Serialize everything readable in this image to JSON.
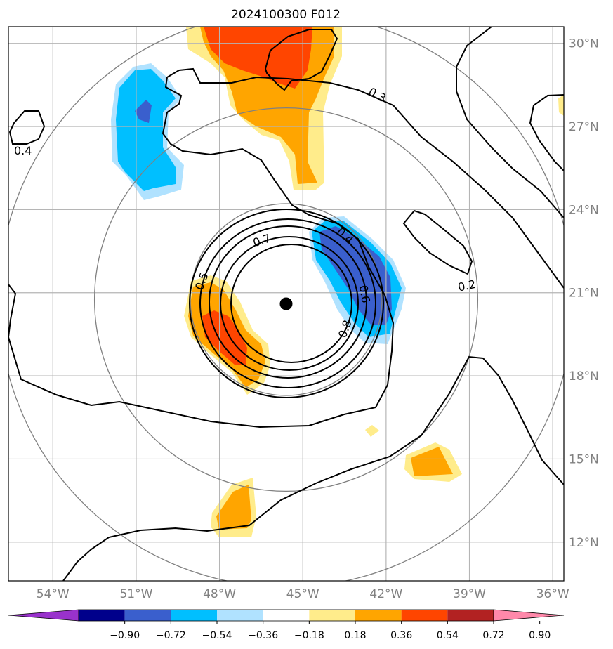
{
  "chart_data": {
    "type": "heatmap",
    "title": "2024100300 F012",
    "x_ticks": [
      "54°W",
      "51°W",
      "48°W",
      "45°W",
      "42°W",
      "39°W",
      "36°W"
    ],
    "y_ticks": [
      "30°N",
      "27°N",
      "24°N",
      "21°N",
      "18°N",
      "15°N",
      "12°N"
    ],
    "xlim": [
      -55.6,
      -35.6
    ],
    "ylim": [
      10.6,
      30.6
    ],
    "grid": true,
    "center_marker": {
      "lon": -45.6,
      "lat": 20.6,
      "color": "#000000"
    },
    "colorbar": {
      "ticks": [
        "−0.90",
        "−0.72",
        "−0.54",
        "−0.36",
        "−0.18",
        "0.18",
        "0.36",
        "0.54",
        "0.72",
        "0.90"
      ],
      "colors": [
        "#9932cc",
        "#00008b",
        "#3a5fcd",
        "#00bfff",
        "#b0e2ff",
        "#ffffff",
        "#ffec8b",
        "#ffa500",
        "#ff4500",
        "#b22222",
        "#ff88aa"
      ]
    },
    "contour_labels": [
      "0.4",
      "0.3",
      "0.7",
      "0.4",
      "0.5",
      "0.6",
      "0.8",
      "0.2"
    ],
    "range_rings_deg": [
      3,
      6,
      9
    ]
  }
}
